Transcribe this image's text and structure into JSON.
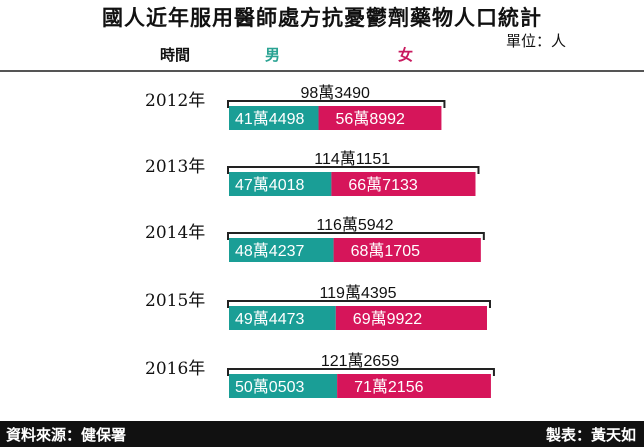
{
  "header": {
    "title": "國人近年服用醫師處方抗憂鬱劑藥物人口統計",
    "unit": "單位：人",
    "col_time": "時間",
    "col_male": "男",
    "col_female": "女"
  },
  "footer": {
    "source": "資料來源：健保署",
    "maker": "製表：黃天如"
  },
  "colors": {
    "male": "#1a9e96",
    "female": "#d6155a",
    "male_label": "#2aa393",
    "female_label": "#c8195e"
  },
  "chart_data": {
    "type": "bar",
    "stacked": true,
    "orientation": "horizontal",
    "title": "國人近年服用醫師處方抗憂鬱劑藥物人口統計",
    "unit": "單位：人",
    "categories": [
      "2012年",
      "2013年",
      "2014年",
      "2015年",
      "2016年"
    ],
    "series": [
      {
        "name": "男",
        "values": [
          414498,
          474018,
          484237,
          494473,
          500503
        ],
        "labels": [
          "41萬4498",
          "47萬4018",
          "48萬4237",
          "49萬4473",
          "50萬0503"
        ]
      },
      {
        "name": "女",
        "values": [
          568992,
          667133,
          681705,
          699922,
          712156
        ],
        "labels": [
          "56萬8992",
          "66萬7133",
          "68萬1705",
          "69萬9922",
          "71萬2156"
        ]
      }
    ],
    "totals": [
      983490,
      1141151,
      1165942,
      1194395,
      1212659
    ],
    "total_labels": [
      "98萬3490",
      "114萬1151",
      "116萬5942",
      "119萬4395",
      "121萬2659"
    ]
  }
}
